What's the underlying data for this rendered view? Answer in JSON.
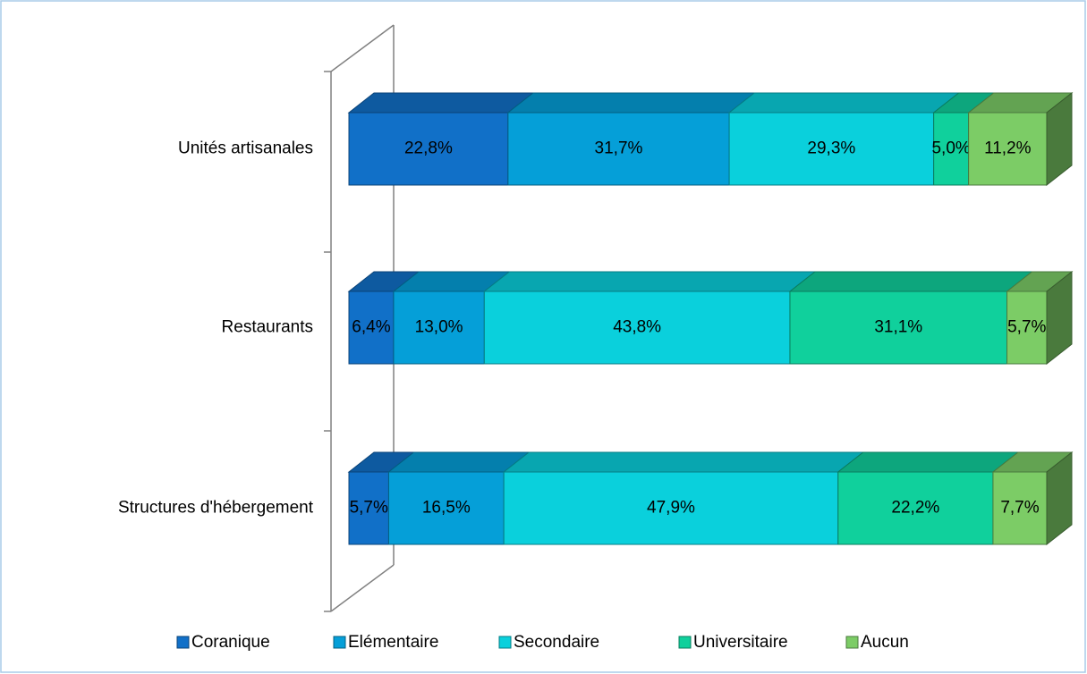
{
  "chart_data": {
    "type": "bar3d_stacked_horizontal",
    "categories": [
      "Unités artisanales",
      "Restaurants",
      "Structures d'hébergement"
    ],
    "series": [
      {
        "name": "Coranique",
        "color": "#1170c8",
        "values": [
          22.8,
          6.4,
          5.7
        ],
        "value_labels": [
          "22,8%",
          "6,4%",
          "5,7%"
        ]
      },
      {
        "name": "Elémentaire",
        "color": "#059fd8",
        "values": [
          31.7,
          13.0,
          16.5
        ],
        "value_labels": [
          "31,7%",
          "13,0%",
          "16,5%"
        ]
      },
      {
        "name": "Secondaire",
        "color": "#0ad0dc",
        "values": [
          29.3,
          43.8,
          47.9
        ],
        "value_labels": [
          "29,3%",
          "43,8%",
          "47,9%"
        ]
      },
      {
        "name": "Universitaire",
        "color": "#10d09c",
        "values": [
          5.0,
          31.1,
          22.2
        ],
        "value_labels": [
          "5,0%",
          "31,1%",
          "22,2%"
        ]
      },
      {
        "name": "Aucun",
        "color": "#7ccc66",
        "values": [
          11.2,
          5.7,
          7.7
        ],
        "value_labels": [
          "11,2%",
          "5,7%",
          "7,7%"
        ]
      }
    ],
    "xlim": [
      0,
      100
    ],
    "legend": "bottom"
  }
}
